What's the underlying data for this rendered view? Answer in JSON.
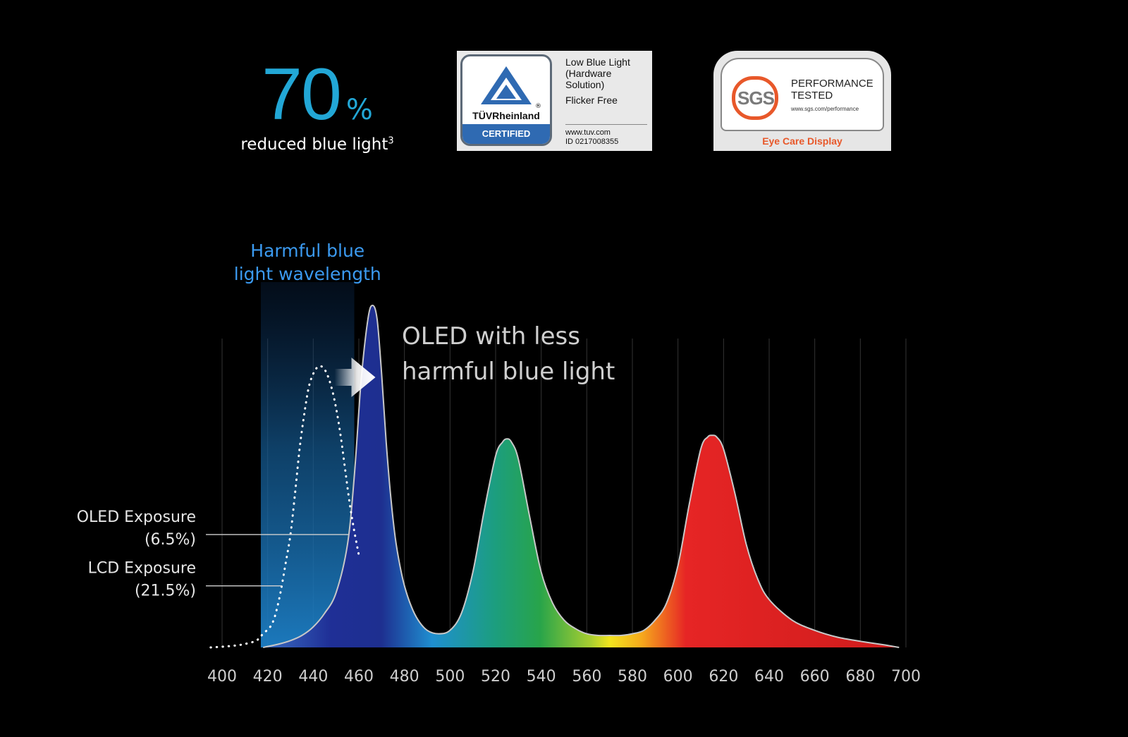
{
  "stat": {
    "value": "70",
    "unit": "%",
    "caption": "reduced blue light",
    "footnote": "3"
  },
  "badges": {
    "tuv": {
      "brand": "TÜVRheinland",
      "registered": "®",
      "certified": "CERTIFIED",
      "lines": [
        "Low Blue Light",
        "(Hardware",
        "Solution)"
      ],
      "flicker": "Flicker Free",
      "url": "www.tuv.com",
      "id": "ID 0217008355"
    },
    "sgs": {
      "brand": "SGS",
      "performance": "PERFORMANCE",
      "tested": "TESTED",
      "url": "www.sgs.com/performance",
      "eye_care": "Eye Care Display"
    }
  },
  "colors": {
    "accent_blue": "#22a7d6",
    "harmful_label": "#3b9af0",
    "tuv_blue": "#2f6ab2",
    "sgs_orange": "#e8582a"
  },
  "chart_data": {
    "type": "area",
    "xlim": [
      400,
      700
    ],
    "ylim": [
      0,
      1
    ],
    "x_ticks": [
      400,
      420,
      440,
      460,
      480,
      500,
      520,
      540,
      560,
      580,
      600,
      620,
      640,
      660,
      680,
      700
    ],
    "grid": true,
    "harmful_band": {
      "label_lines": [
        "Harmful blue",
        "light wavelength"
      ],
      "from": 417,
      "to": 458
    },
    "callout_lines": [
      "OLED with less",
      "harmful blue light"
    ],
    "series": [
      {
        "kind": "oled",
        "x": [
          418,
          425,
          430,
          435,
          440,
          445,
          450,
          455,
          458,
          461,
          464,
          466,
          468,
          470,
          472,
          474,
          476,
          478,
          480,
          483,
          486,
          490,
          495,
          500,
          505,
          510,
          515,
          520,
          523,
          525,
          527,
          530,
          535,
          540,
          545,
          550,
          555,
          560,
          565,
          570,
          575,
          580,
          585,
          590,
          595,
          600,
          605,
          610,
          613,
          615,
          617,
          620,
          625,
          630,
          635,
          640,
          650,
          660,
          670,
          680,
          690,
          697
        ],
        "y": [
          0,
          0.01,
          0.02,
          0.035,
          0.06,
          0.1,
          0.16,
          0.3,
          0.5,
          0.78,
          0.96,
          1,
          0.96,
          0.8,
          0.6,
          0.44,
          0.32,
          0.24,
          0.18,
          0.12,
          0.08,
          0.05,
          0.04,
          0.05,
          0.1,
          0.22,
          0.4,
          0.56,
          0.6,
          0.61,
          0.6,
          0.55,
          0.38,
          0.22,
          0.13,
          0.08,
          0.055,
          0.04,
          0.035,
          0.035,
          0.035,
          0.04,
          0.05,
          0.08,
          0.13,
          0.24,
          0.42,
          0.58,
          0.615,
          0.62,
          0.615,
          0.58,
          0.45,
          0.3,
          0.2,
          0.14,
          0.08,
          0.05,
          0.03,
          0.018,
          0.008,
          0
        ]
      },
      {
        "kind": "lcd",
        "x": [
          395,
          400,
          405,
          410,
          415,
          418,
          422,
          425,
          428,
          430,
          432,
          434,
          436,
          438,
          440,
          442,
          444,
          446,
          448,
          450,
          452,
          454,
          456,
          458,
          460
        ],
        "y": [
          0,
          0.002,
          0.005,
          0.01,
          0.02,
          0.04,
          0.07,
          0.14,
          0.25,
          0.33,
          0.45,
          0.58,
          0.68,
          0.76,
          0.8,
          0.82,
          0.82,
          0.8,
          0.76,
          0.7,
          0.62,
          0.52,
          0.42,
          0.34,
          0.27
        ]
      }
    ],
    "annotations": [
      {
        "label_lines": [
          "OLED Exposure",
          "(6.5%)"
        ],
        "series": "oled",
        "level": 0.33
      },
      {
        "label_lines": [
          "LCD Exposure",
          "(21.5%)"
        ],
        "series": "lcd",
        "level": 0.18
      }
    ]
  }
}
